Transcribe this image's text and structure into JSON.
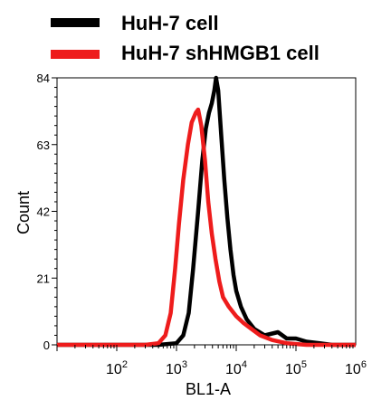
{
  "chart_data": {
    "type": "line",
    "title": "",
    "xlabel": "BL1-A",
    "ylabel": "Count",
    "x_scale": "log",
    "xlim": [
      10,
      1000000
    ],
    "ylim": [
      0,
      84
    ],
    "y_ticks": [
      0,
      21,
      42,
      63,
      84
    ],
    "x_tick_labels": [
      "10",
      "10",
      "10",
      "10",
      "10"
    ],
    "x_tick_exponents": [
      "2",
      "3",
      "4",
      "5",
      "6"
    ],
    "x_tick_values": [
      100,
      1000,
      10000,
      100000,
      1000000
    ],
    "grid": false,
    "legend_position": "top",
    "series": [
      {
        "name": "HuH-7 cell",
        "color": "#000000",
        "points": [
          [
            10,
            0
          ],
          [
            500,
            0
          ],
          [
            1000,
            0.5
          ],
          [
            1300,
            3
          ],
          [
            1600,
            10
          ],
          [
            1900,
            24
          ],
          [
            2300,
            42
          ],
          [
            2700,
            58
          ],
          [
            3100,
            68
          ],
          [
            3500,
            73
          ],
          [
            3900,
            76
          ],
          [
            4300,
            80
          ],
          [
            4600,
            84
          ],
          [
            5000,
            80
          ],
          [
            5600,
            66
          ],
          [
            6300,
            52
          ],
          [
            7100,
            40
          ],
          [
            8000,
            30
          ],
          [
            9000,
            22
          ],
          [
            10000,
            17
          ],
          [
            12000,
            12
          ],
          [
            15000,
            8
          ],
          [
            20000,
            5
          ],
          [
            30000,
            3
          ],
          [
            50000,
            4
          ],
          [
            70000,
            2
          ],
          [
            100000,
            2
          ],
          [
            150000,
            1
          ],
          [
            250000,
            0.5
          ],
          [
            400000,
            0
          ],
          [
            1000000,
            0
          ]
        ]
      },
      {
        "name": "HuH-7 shHMGB1 cell",
        "color": "#ee1c1c",
        "points": [
          [
            10,
            0
          ],
          [
            300,
            0
          ],
          [
            500,
            0.5
          ],
          [
            650,
            3
          ],
          [
            800,
            10
          ],
          [
            950,
            24
          ],
          [
            1100,
            38
          ],
          [
            1300,
            52
          ],
          [
            1550,
            63
          ],
          [
            1800,
            70
          ],
          [
            2100,
            73
          ],
          [
            2300,
            74
          ],
          [
            2600,
            69
          ],
          [
            3000,
            58
          ],
          [
            3400,
            45
          ],
          [
            3900,
            35
          ],
          [
            4500,
            27
          ],
          [
            5200,
            20
          ],
          [
            6000,
            15
          ],
          [
            7500,
            12
          ],
          [
            10000,
            9
          ],
          [
            13000,
            7
          ],
          [
            18000,
            5
          ],
          [
            25000,
            3
          ],
          [
            40000,
            1.5
          ],
          [
            70000,
            0.5
          ],
          [
            150000,
            0
          ],
          [
            1000000,
            0
          ]
        ]
      }
    ]
  }
}
